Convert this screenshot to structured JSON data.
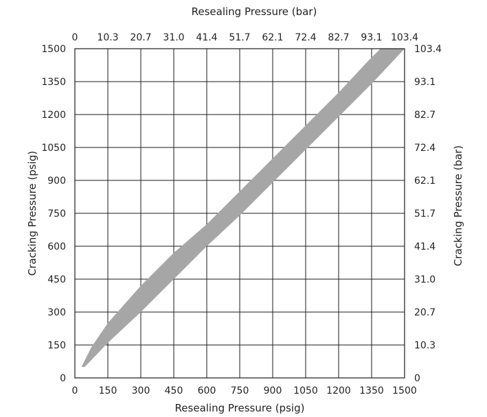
{
  "chart_data": {
    "type": "area",
    "title": "",
    "xlabel": "Resealing Pressure (psig)",
    "ylabel": "Cracking Pressure (psig)",
    "x2label": "Resealing Pressure (bar)",
    "y2label": "Cracking Pressure (bar)",
    "xlim": [
      0,
      1500
    ],
    "ylim": [
      0,
      1500
    ],
    "x_ticks": [
      "0",
      "150",
      "300",
      "450",
      "600",
      "750",
      "900",
      "1050",
      "1200",
      "1350",
      "1500"
    ],
    "y_ticks": [
      "0",
      "150",
      "300",
      "450",
      "600",
      "750",
      "900",
      "1050",
      "1200",
      "1350",
      "1500"
    ],
    "x2_ticks": [
      "0",
      "10.3",
      "20.7",
      "31.0",
      "41.4",
      "51.7",
      "62.1",
      "72.4",
      "82.7",
      "93.1",
      "103.4"
    ],
    "y2_ticks": [
      "0",
      "10.3",
      "20.7",
      "31.0",
      "41.4",
      "51.7",
      "62.1",
      "72.4",
      "82.7",
      "93.1",
      "103.4"
    ],
    "grid": true,
    "band_color": "#a6a6a6",
    "band": {
      "upper": [
        [
          30,
          50
        ],
        [
          75,
          140
        ],
        [
          150,
          250
        ],
        [
          300,
          420
        ],
        [
          450,
          570
        ],
        [
          600,
          700
        ],
        [
          750,
          850
        ],
        [
          900,
          1000
        ],
        [
          1050,
          1150
        ],
        [
          1200,
          1300
        ],
        [
          1330,
          1440
        ],
        [
          1390,
          1500
        ]
      ],
      "lower": [
        [
          45,
          50
        ],
        [
          150,
          160
        ],
        [
          300,
          300
        ],
        [
          450,
          450
        ],
        [
          600,
          600
        ],
        [
          750,
          740
        ],
        [
          900,
          890
        ],
        [
          1050,
          1040
        ],
        [
          1200,
          1190
        ],
        [
          1350,
          1340
        ],
        [
          1500,
          1500
        ]
      ]
    }
  }
}
